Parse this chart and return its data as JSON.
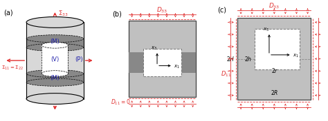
{
  "bg_color": "#ffffff",
  "gray_light": "#c0c0c0",
  "gray_light2": "#d8d8d8",
  "gray_dark": "#888888",
  "gray_border": "#404040",
  "red_color": "#e03030",
  "red_arrow": "#e05050",
  "blue_label": "#2020aa",
  "panel_a_label": "(a)",
  "panel_b_label": "(b)",
  "panel_c_label": "(c)"
}
